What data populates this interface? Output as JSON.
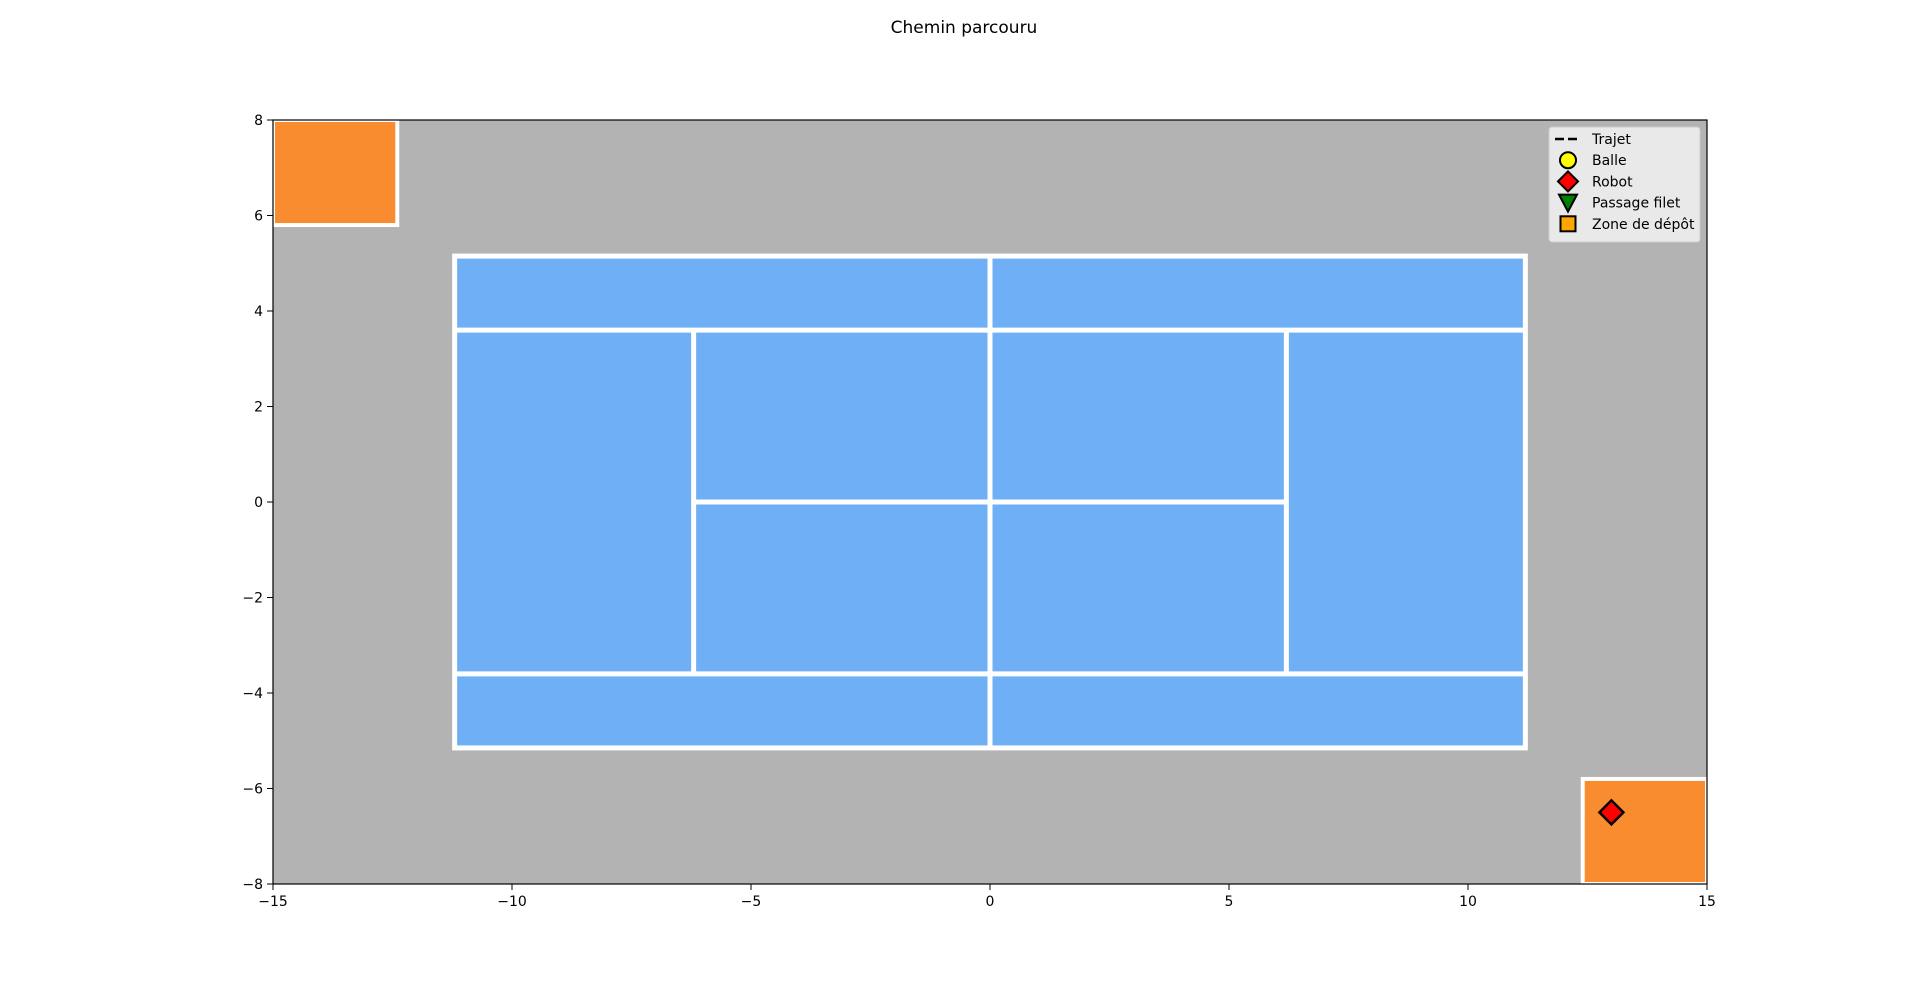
{
  "chart_data": {
    "type": "scatter",
    "title": "Chemin parcouru",
    "xlabel": "",
    "ylabel": "",
    "xlim": [
      -15,
      15
    ],
    "ylim": [
      -8,
      8
    ],
    "xticks": [
      -15,
      -10,
      -5,
      0,
      5,
      10,
      15
    ],
    "yticks": [
      -8,
      -6,
      -4,
      -2,
      0,
      2,
      4,
      6,
      8
    ],
    "xtick_labels": [
      "−15",
      "−10",
      "−5",
      "0",
      "5",
      "10",
      "15"
    ],
    "ytick_labels": [
      "−8",
      "−6",
      "−4",
      "−2",
      "0",
      "2",
      "4",
      "6",
      "8"
    ],
    "grid": false,
    "background_color": "#b3b3b3",
    "court": {
      "color": "#6fafF5",
      "line_color": "#ffffff",
      "x_min": -11.2,
      "x_max": 11.2,
      "y_min": -5.15,
      "y_max": 5.15,
      "singles_y": 3.6,
      "service_x": 6.2,
      "net_x": 0
    },
    "drop_zones": [
      {
        "name": "Zone de dépôt haut-gauche",
        "x_min": -15,
        "x_max": -12.4,
        "y_min": 5.8,
        "y_max": 8,
        "color": "#f98c2e"
      },
      {
        "name": "Zone de dépôt bas-droite",
        "x_min": 12.4,
        "x_max": 15,
        "y_min": -5.8,
        "y_max": -8,
        "color": "#f98c2e"
      }
    ],
    "robot": {
      "x": 13.0,
      "y": -6.5,
      "color": "#ff0000"
    },
    "legend": {
      "placement": "top-right",
      "entries": [
        {
          "label": "Trajet",
          "marker": "dashed-line",
          "color": "#000000"
        },
        {
          "label": "Balle",
          "marker": "circle",
          "color": "#ffff00"
        },
        {
          "label": "Robot",
          "marker": "diamond",
          "color": "#ff0000"
        },
        {
          "label": "Passage filet",
          "marker": "triangle-down",
          "color": "#008000"
        },
        {
          "label": "Zone de dépôt",
          "marker": "square",
          "color": "#ffa500"
        }
      ]
    }
  }
}
